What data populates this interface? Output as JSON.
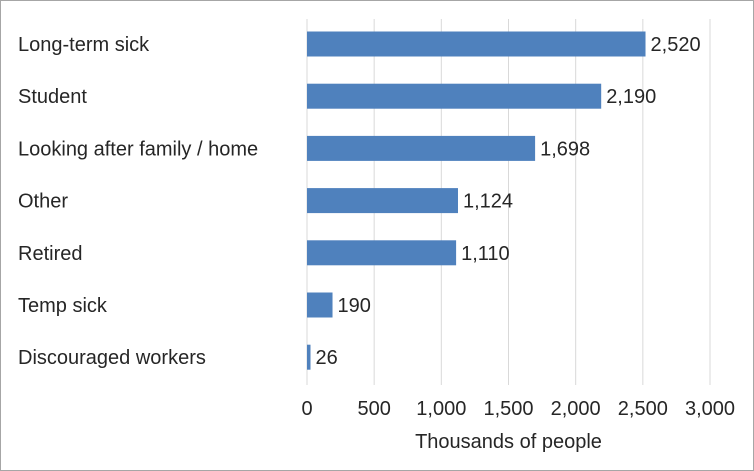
{
  "chart_data": {
    "type": "bar",
    "orientation": "horizontal",
    "categories": [
      "Long-term sick",
      "Student",
      "Looking after family / home",
      "Other",
      "Retired",
      "Temp sick",
      "Discouraged workers"
    ],
    "values": [
      2520,
      2190,
      1698,
      1124,
      1110,
      190,
      26
    ],
    "value_labels": [
      "2,520",
      "2,190",
      "1,698",
      "1,124",
      "1,110",
      "190",
      "26"
    ],
    "xlabel": "Thousands of people",
    "ylabel": "",
    "xlim": [
      0,
      3000
    ],
    "ticks": [
      0,
      500,
      1000,
      1500,
      2000,
      2500,
      3000
    ],
    "tick_labels": [
      "0",
      "500",
      "1,000",
      "1,500",
      "2,000",
      "2,500",
      "3,000"
    ],
    "grid": "vertical",
    "legend": "none",
    "bar_color": "#4f81bd",
    "grid_color": "#d9d9d9"
  }
}
